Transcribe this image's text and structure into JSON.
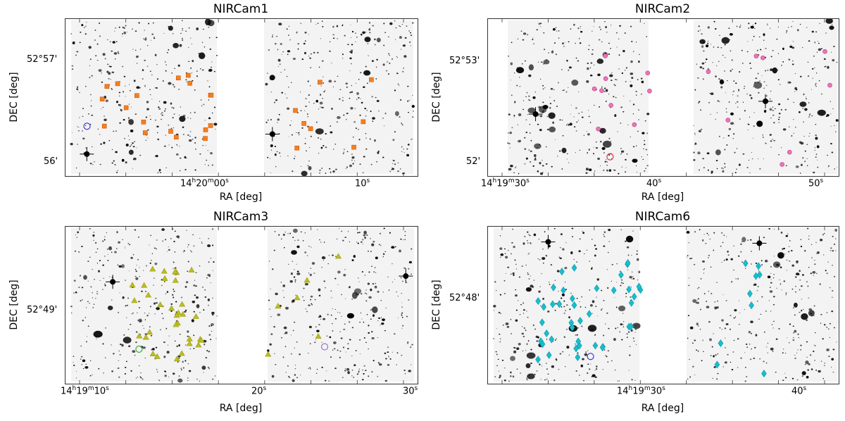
{
  "panels": [
    {
      "title": "NIRCam1",
      "xlabel": "RA [deg]",
      "ylabel": "DEC [deg]",
      "ra_ticks": [
        {
          "h": "14",
          "m": "20",
          "s": "00",
          "format": "hms"
        },
        {
          "s": "10",
          "format": "s"
        }
      ],
      "dec_ticks": [
        "52°57'",
        "56'"
      ],
      "marker": {
        "shape": "square",
        "color": "#f4801f",
        "edge": "#d45500"
      },
      "extra": [
        {
          "shape": "circle",
          "color": "#2b2bd6"
        }
      ]
    },
    {
      "title": "NIRCam2",
      "xlabel": "RA [deg]",
      "ylabel": "DEC [deg]",
      "ra_ticks": [
        {
          "h": "14",
          "m": "19",
          "s": "30",
          "format": "hms"
        },
        {
          "s": "40",
          "format": "s"
        },
        {
          "s": "50",
          "format": "s"
        }
      ],
      "dec_ticks": [
        "52°53'",
        "52'"
      ],
      "marker": {
        "shape": "dot",
        "color": "#e377c2",
        "edge": "#d6336c"
      },
      "extra": [
        {
          "shape": "circle",
          "color": "#d62728"
        }
      ]
    },
    {
      "title": "NIRCam3",
      "xlabel": "RA [deg]",
      "ylabel": "DEC [deg]",
      "ra_ticks": [
        {
          "h": "14",
          "m": "19",
          "s": "10",
          "format": "hms"
        },
        {
          "s": "20",
          "format": "s"
        },
        {
          "s": "30",
          "format": "s"
        }
      ],
      "dec_ticks": [
        "52°49'"
      ],
      "marker": {
        "shape": "triangle",
        "color": "#bcbd22",
        "edge": "#9a9a10"
      },
      "extra": [
        {
          "shape": "circle",
          "color": "#2ca02c"
        },
        {
          "shape": "circle",
          "color": "#9467bd"
        }
      ]
    },
    {
      "title": "NIRCam6",
      "xlabel": "RA [deg]",
      "ylabel": "DEC [deg]",
      "ra_ticks": [
        {
          "h": "14",
          "m": "19",
          "s": "30",
          "format": "hms"
        },
        {
          "s": "40",
          "format": "s"
        }
      ],
      "dec_ticks": [
        "52°48'"
      ],
      "marker": {
        "shape": "diamond",
        "color": "#17becf",
        "edge": "#0f9aa8"
      },
      "extra": [
        {
          "shape": "circle",
          "color": "#2b2bd6"
        }
      ]
    }
  ]
}
